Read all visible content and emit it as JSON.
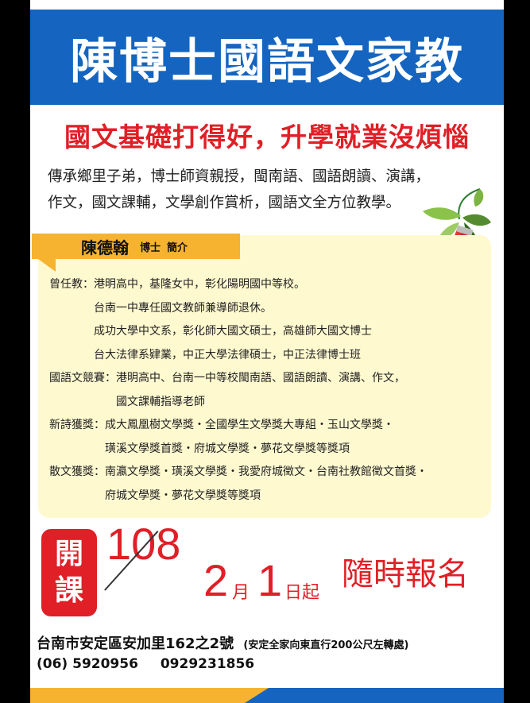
{
  "header": {
    "title": "陳博士國語文家教"
  },
  "slogan": "國文基礎打得好，升學就業沒煩惱",
  "intro": {
    "line1": "傳承鄉里子弟，博士師資親授，閩南語、國語朗讀、演講，",
    "line2": "作文，國文課輔，文學創作賞析，國語文全方位教學。"
  },
  "profile": {
    "name": "陳德翰",
    "title": "博士",
    "label": "簡介",
    "lines": [
      "曾任教：港明高中，基隆女中，彰化陽明國中等校。",
      "　　　　台南一中專任國文教師兼導師退休。",
      "　　　　成功大學中文系，彰化師大國文碩士，高雄師大國文博士",
      "　　　　台大法律系肄業，中正大學法律碩士，中正法律博士班",
      "國語文競賽：港明高中、台南一中等校閩南語、國語朗讀、演講、作文，",
      "　　　　　　國文課輔指導老師",
      "新詩獲獎：成大鳳凰樹文學獎・全國學生文學獎大專組・玉山文學獎・",
      "　　　　　璜溪文學獎首獎・府城文學獎・夢花文學獎等獎項",
      "散文獲獎：南瀛文學獎・璜溪文學獎・我愛府城徵文・台南社教館徵文首獎・",
      "　　　　　府城文學獎・夢花文學獎等獎項"
    ]
  },
  "course": {
    "badge_top": "開",
    "badge_bottom": "課",
    "year": "108",
    "month": "2",
    "month_unit": "月",
    "day": "1",
    "day_unit": "日起",
    "enroll": "隨時報名"
  },
  "contact": {
    "address": "台南市安定區安加里162之2號",
    "address_note": "(安定全家向東直行200公尺左轉處)",
    "phone1": "(06) 5920956",
    "phone2": "0929231856"
  },
  "colors": {
    "blue": "#1565c0",
    "red": "#e01f26",
    "orange": "#f5b330",
    "cream": "#fff9d0"
  }
}
